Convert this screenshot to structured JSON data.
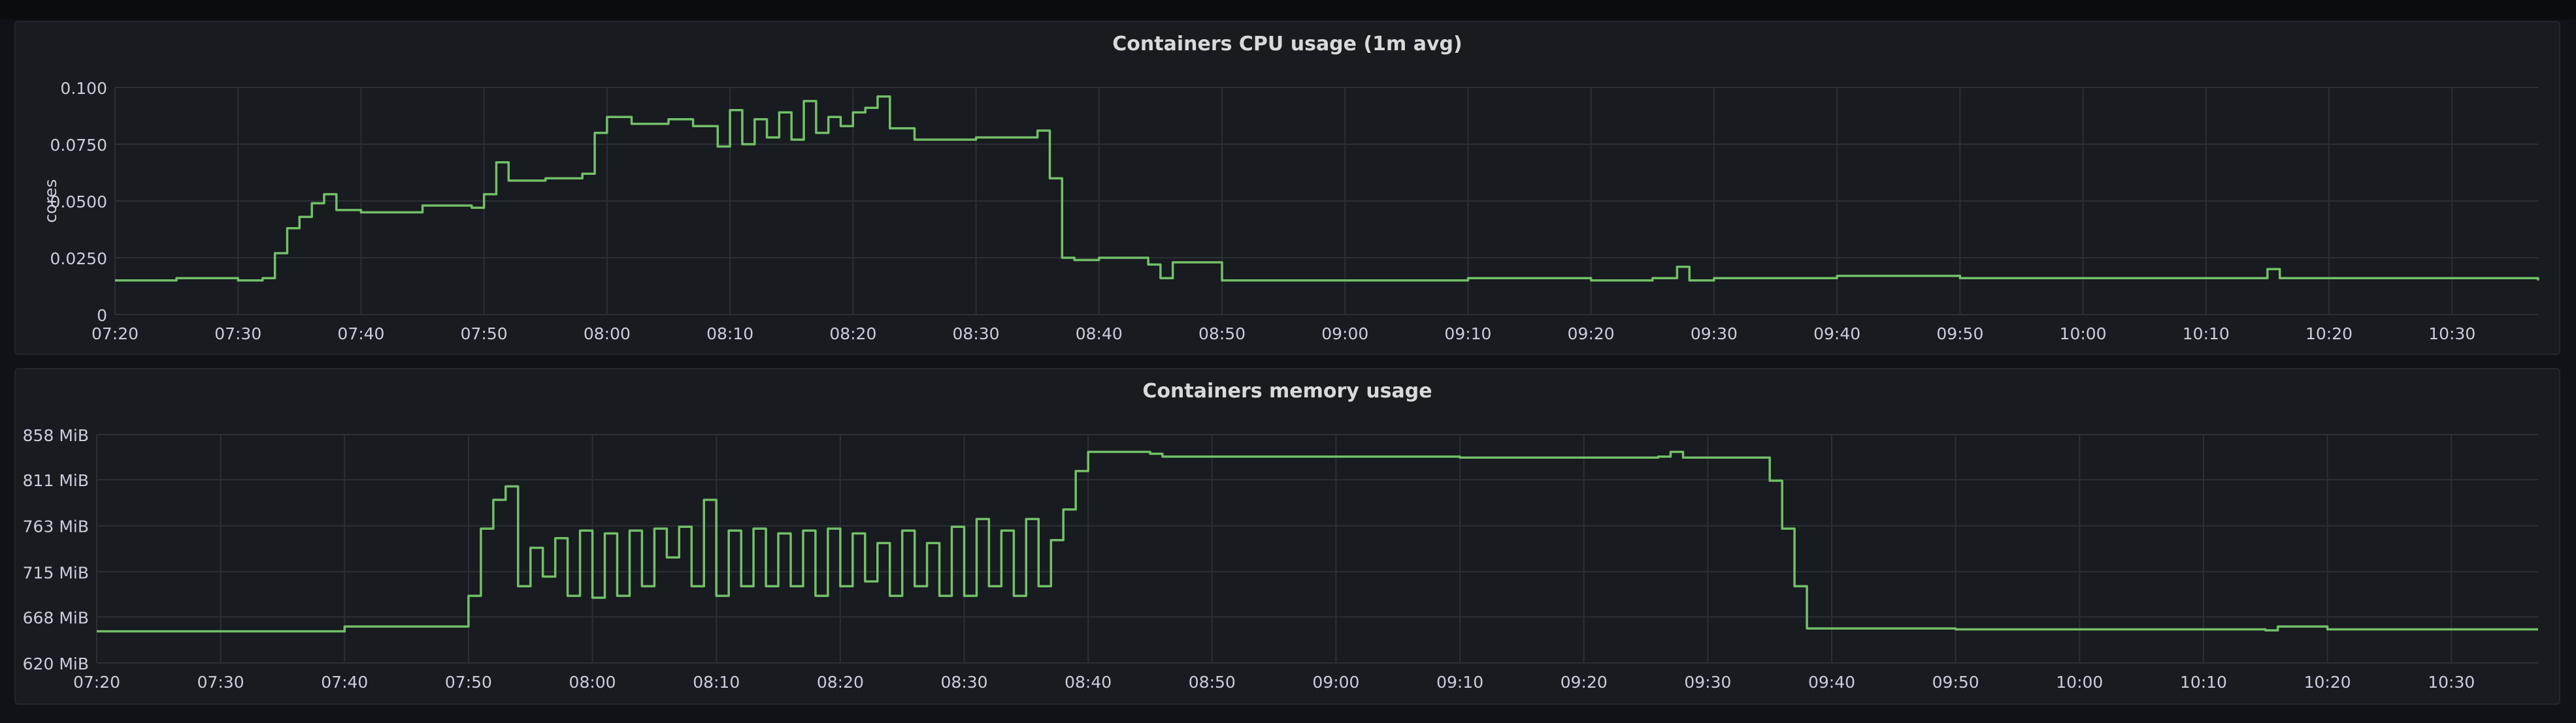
{
  "theme": {
    "background": "#111217",
    "panel": "#181b1f",
    "grid": "#2c2f36",
    "text": "#ccccdc",
    "series": "#73bf69"
  },
  "chart_data": [
    {
      "type": "line",
      "title": "Containers CPU usage (1m avg)",
      "ylabel": "cores",
      "xlabel": "",
      "x_ticks": [
        "07:20",
        "07:30",
        "07:40",
        "07:50",
        "08:00",
        "08:10",
        "08:20",
        "08:30",
        "08:40",
        "08:50",
        "09:00",
        "09:10",
        "09:20",
        "09:30",
        "09:40",
        "09:50",
        "10:00",
        "10:10",
        "10:20",
        "10:30"
      ],
      "y_ticks": [
        "0",
        "0.0250",
        "0.0500",
        "0.0750",
        "0.100"
      ],
      "xlim": [
        "07:20",
        "10:37"
      ],
      "ylim": [
        0,
        0.1
      ],
      "grid": true,
      "legend": "none",
      "series": [
        {
          "x": [
            "07:20",
            "07:25",
            "07:30",
            "07:32",
            "07:33",
            "07:34",
            "07:35",
            "07:36",
            "07:37",
            "07:38",
            "07:40",
            "07:45",
            "07:49",
            "07:50",
            "07:51",
            "07:52",
            "07:55",
            "07:58",
            "07:59",
            "08:00",
            "08:02",
            "08:05",
            "08:07",
            "08:09",
            "08:10",
            "08:11",
            "08:12",
            "08:13",
            "08:14",
            "08:15",
            "08:16",
            "08:17",
            "08:18",
            "08:19",
            "08:20",
            "08:21",
            "08:22",
            "08:23",
            "08:25",
            "08:30",
            "08:35",
            "08:36",
            "08:37",
            "08:38",
            "08:40",
            "08:44",
            "08:45",
            "08:46",
            "08:50",
            "09:00",
            "09:10",
            "09:20",
            "09:25",
            "09:27",
            "09:28",
            "09:30",
            "09:40",
            "09:50",
            "10:00",
            "10:10",
            "10:14",
            "10:15",
            "10:16",
            "10:20",
            "10:30",
            "10:37"
          ],
          "y": [
            0.015,
            0.016,
            0.015,
            0.016,
            0.027,
            0.038,
            0.043,
            0.049,
            0.053,
            0.046,
            0.045,
            0.048,
            0.047,
            0.053,
            0.067,
            0.059,
            0.06,
            0.062,
            0.08,
            0.087,
            0.084,
            0.086,
            0.083,
            0.074,
            0.09,
            0.075,
            0.086,
            0.078,
            0.089,
            0.077,
            0.094,
            0.08,
            0.087,
            0.083,
            0.089,
            0.091,
            0.096,
            0.082,
            0.077,
            0.078,
            0.081,
            0.06,
            0.025,
            0.024,
            0.025,
            0.022,
            0.016,
            0.023,
            0.015,
            0.015,
            0.016,
            0.015,
            0.016,
            0.021,
            0.015,
            0.016,
            0.017,
            0.016,
            0.016,
            0.016,
            0.016,
            0.02,
            0.016,
            0.016,
            0.016,
            0.015
          ]
        }
      ]
    },
    {
      "type": "line",
      "title": "Containers memory usage",
      "ylabel": "",
      "xlabel": "",
      "x_ticks": [
        "07:20",
        "07:30",
        "07:40",
        "07:50",
        "08:00",
        "08:10",
        "08:20",
        "08:30",
        "08:40",
        "08:50",
        "09:00",
        "09:10",
        "09:20",
        "09:30",
        "09:40",
        "09:50",
        "10:00",
        "10:10",
        "10:20",
        "10:30"
      ],
      "y_ticks": [
        "620 MiB",
        "668 MiB",
        "715 MiB",
        "763 MiB",
        "811 MiB",
        "858 MiB"
      ],
      "xlim": [
        "07:20",
        "10:37"
      ],
      "ylim": [
        620,
        858
      ],
      "grid": true,
      "legend": "none",
      "series": [
        {
          "x": [
            "07:20",
            "07:30",
            "07:40",
            "07:50",
            "07:50",
            "07:51",
            "07:52",
            "07:53",
            "07:54",
            "07:55",
            "07:56",
            "07:57",
            "07:58",
            "07:59",
            "08:00",
            "08:01",
            "08:02",
            "08:03",
            "08:04",
            "08:05",
            "08:06",
            "08:07",
            "08:08",
            "08:09",
            "08:10",
            "08:11",
            "08:12",
            "08:13",
            "08:14",
            "08:15",
            "08:16",
            "08:17",
            "08:18",
            "08:19",
            "08:20",
            "08:21",
            "08:22",
            "08:23",
            "08:24",
            "08:25",
            "08:26",
            "08:27",
            "08:28",
            "08:29",
            "08:30",
            "08:31",
            "08:32",
            "08:33",
            "08:34",
            "08:35",
            "08:36",
            "08:37",
            "08:38",
            "08:39",
            "08:40",
            "08:41",
            "08:45",
            "08:46",
            "09:00",
            "09:10",
            "09:20",
            "09:26",
            "09:27",
            "09:28",
            "09:30",
            "09:34",
            "09:35",
            "09:36",
            "09:37",
            "09:38",
            "09:40",
            "09:50",
            "10:00",
            "10:10",
            "10:15",
            "10:16",
            "10:20",
            "10:30",
            "10:37"
          ],
          "y": [
            653,
            653,
            658,
            664,
            690,
            760,
            790,
            804,
            700,
            740,
            710,
            750,
            690,
            758,
            688,
            755,
            690,
            758,
            700,
            760,
            730,
            762,
            700,
            790,
            690,
            758,
            700,
            760,
            700,
            755,
            700,
            758,
            690,
            760,
            700,
            755,
            705,
            745,
            690,
            758,
            700,
            745,
            690,
            762,
            690,
            770,
            700,
            758,
            690,
            770,
            700,
            748,
            780,
            820,
            840,
            840,
            838,
            835,
            835,
            834,
            834,
            835,
            840,
            834,
            834,
            834,
            810,
            760,
            700,
            656,
            656,
            655,
            655,
            655,
            654,
            658,
            655,
            655,
            655
          ]
        }
      ]
    }
  ]
}
